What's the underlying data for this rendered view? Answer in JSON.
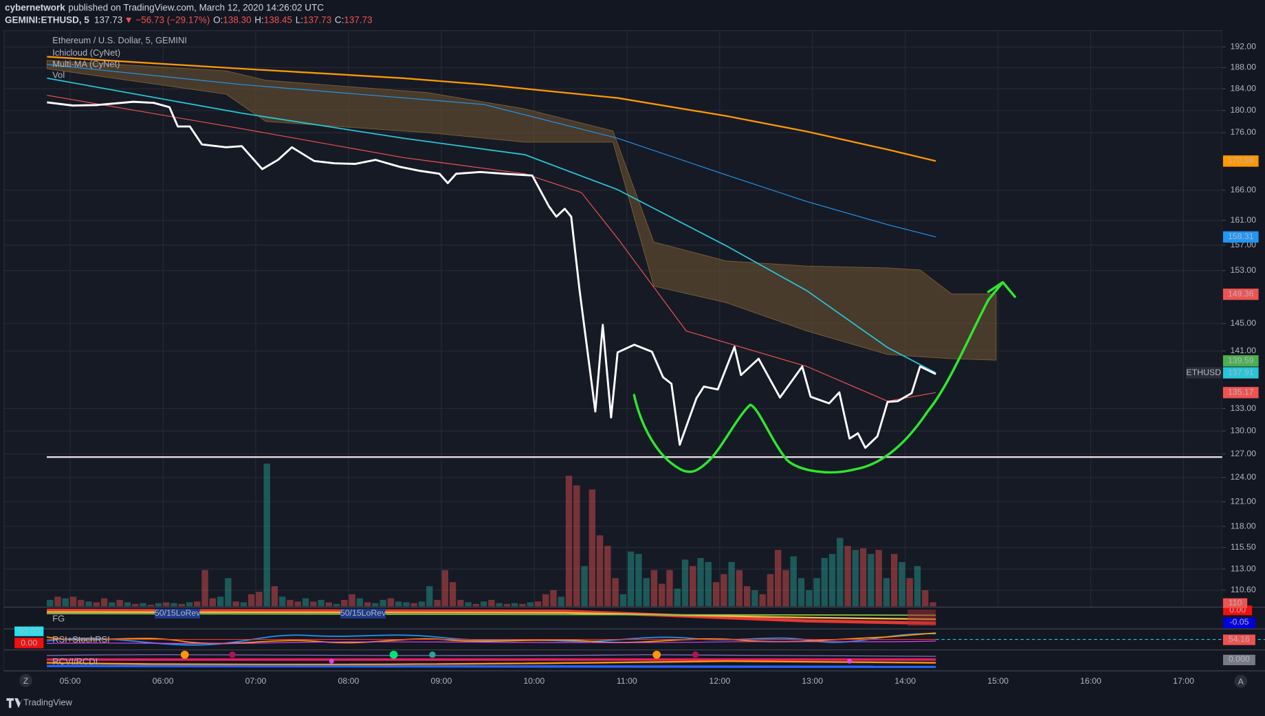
{
  "header": {
    "publisher": "cybernetwork",
    "published": "published on TradingView.com, March 12, 2020 14:26:02 UTC",
    "symbol": "GEMINI:ETHUSD, 5",
    "last": "137.73",
    "arrow": "▼",
    "change": "−56.73 (−29.17%)",
    "ohlc": [
      {
        "label": "O:",
        "value": "138.30"
      },
      {
        "label": "H:",
        "value": "138.45"
      },
      {
        "label": "L:",
        "value": "137.73"
      },
      {
        "label": "C:",
        "value": "137.73"
      }
    ]
  },
  "chart_data": {
    "type": "line",
    "title": "Ethereum / U.S. Dollar, 5, GEMINI",
    "indicator_names": [
      {
        "text": "Ichicloud (CyNet)",
        "color": "#e0a050"
      },
      {
        "text": "Multi-MA (CyNet)",
        "color": "#5aa8e8"
      },
      {
        "text": "Vol",
        "color": "#d1d4dc"
      }
    ],
    "log_scale": true,
    "grid": true,
    "xlim": [
      4.287,
      17.417
    ],
    "xticks": [
      {
        "value": 5,
        "label": "05:00"
      },
      {
        "value": 6,
        "label": "06:00"
      },
      {
        "value": 7,
        "label": "07:00"
      },
      {
        "value": 8,
        "label": "08:00"
      },
      {
        "value": 9,
        "label": "09:00"
      },
      {
        "value": 10,
        "label": "10:00"
      },
      {
        "value": 11,
        "label": "11:00"
      },
      {
        "value": 12,
        "label": "12:00"
      },
      {
        "value": 13,
        "label": "13:00"
      },
      {
        "value": 14,
        "label": "14:00"
      },
      {
        "value": 15,
        "label": "15:00"
      },
      {
        "value": 16,
        "label": "16:00"
      },
      {
        "value": 17,
        "label": "17:00"
      }
    ],
    "ylim": [
      108.8,
      195.2
    ],
    "yticks": [
      {
        "value": 192,
        "label": "192.00"
      },
      {
        "value": 188,
        "label": "188.00"
      },
      {
        "value": 184,
        "label": "184.00"
      },
      {
        "value": 180,
        "label": "180.00"
      },
      {
        "value": 176,
        "label": "176.00"
      },
      {
        "value": 166,
        "label": "166.00"
      },
      {
        "value": 161,
        "label": "161.00"
      },
      {
        "value": 157,
        "label": "157.00"
      },
      {
        "value": 153,
        "label": "153.00"
      },
      {
        "value": 145,
        "label": "145.00"
      },
      {
        "value": 141,
        "label": "141.00"
      },
      {
        "value": 133,
        "label": "133.00"
      },
      {
        "value": 130,
        "label": "130.00"
      },
      {
        "value": 127,
        "label": "127.00"
      },
      {
        "value": 124,
        "label": "124.00"
      },
      {
        "value": 121,
        "label": "121.00"
      },
      {
        "value": 118,
        "label": "118.00"
      },
      {
        "value": 115.5,
        "label": "115.50"
      },
      {
        "value": 113,
        "label": "113.00"
      },
      {
        "value": 110.6,
        "label": "110.60"
      }
    ],
    "cloud": {
      "color": "#6b5230",
      "x": [
        4.75,
        6.68,
        7.11,
        8.85,
        9.9,
        10.85,
        11.29,
        12.07,
        12.94,
        13.81,
        14.16,
        14.5,
        14.98
      ],
      "upper": [
        189.4,
        187.4,
        185.6,
        183.3,
        180.3,
        176.3,
        157.5,
        154.5,
        153.7,
        153.4,
        153.1,
        149.4,
        149.4
      ],
      "lower": [
        187.8,
        183.0,
        178.0,
        176.0,
        174.3,
        174.3,
        150.6,
        148.1,
        143.9,
        140.5,
        140.2,
        139.9,
        139.7
      ]
    },
    "series": [
      {
        "color": "#ff9800",
        "width": 2,
        "x": [
          4.75,
          6.85,
          8.59,
          9.46,
          10.9,
          12.07,
          12.94,
          13.81,
          14.33
        ],
        "values": [
          190.1,
          187.8,
          186.0,
          184.8,
          182.3,
          179.0,
          176.2,
          173.0,
          170.99
        ]
      },
      {
        "color": "#2196f3",
        "width": 1,
        "x": [
          4.75,
          6.85,
          9.46,
          10.9,
          12.07,
          12.94,
          13.81,
          14.33
        ],
        "values": [
          188.6,
          184.8,
          181.1,
          175.0,
          168.6,
          164.1,
          160.3,
          158.31
        ]
      },
      {
        "color": "#26c6da",
        "width": 1.5,
        "x": [
          4.75,
          6.85,
          8.59,
          9.9,
          10.9,
          12.07,
          12.94,
          13.81,
          14.33
        ],
        "values": [
          186.0,
          179.5,
          175.0,
          172.1,
          166.1,
          156.9,
          149.9,
          141.5,
          137.91
        ]
      },
      {
        "color": "#ef5350",
        "width": 1,
        "x": [
          4.75,
          6.85,
          8.59,
          9.9,
          10.51,
          10.9,
          11.64,
          12.94,
          13.81,
          14.33
        ],
        "values": [
          182.8,
          176.7,
          171.6,
          168.8,
          165.6,
          158.1,
          143.9,
          138.8,
          134.0,
          135.17
        ]
      },
      {
        "color": "#ffffff",
        "width": 2.5,
        "x": [
          4.75,
          5.03,
          5.29,
          5.68,
          5.9,
          6.07,
          6.16,
          6.29,
          6.42,
          6.68,
          6.85,
          7.07,
          7.24,
          7.39,
          7.63,
          7.85,
          8.07,
          8.29,
          8.55,
          8.77,
          8.98,
          9.07,
          9.16,
          9.42,
          9.68,
          9.98,
          10.16,
          10.24,
          10.33,
          10.4,
          10.49,
          10.66,
          10.74,
          10.83,
          10.9,
          11.08,
          11.27,
          11.39,
          11.48,
          11.57,
          11.75,
          11.83,
          11.98,
          12.16,
          12.23,
          12.42,
          12.65,
          12.89,
          12.98,
          13.18,
          13.29,
          13.4,
          13.49,
          13.57,
          13.7,
          13.81,
          13.92,
          14.07,
          14.16,
          14.33
        ],
        "values": [
          181.5,
          180.9,
          181.0,
          181.6,
          181.4,
          180.6,
          177.1,
          177.1,
          173.9,
          173.4,
          173.6,
          169.6,
          171.2,
          173.4,
          171.0,
          170.6,
          170.5,
          171.2,
          170.0,
          169.3,
          168.8,
          167.2,
          168.8,
          169.1,
          168.8,
          168.5,
          163.3,
          161.6,
          162.9,
          161.6,
          150.0,
          132.6,
          144.8,
          131.8,
          140.8,
          141.9,
          140.9,
          137.3,
          136.4,
          128.2,
          134.4,
          136.0,
          135.6,
          141.6,
          137.6,
          139.9,
          134.5,
          138.8,
          134.6,
          133.7,
          135.2,
          129.0,
          129.7,
          127.8,
          129.3,
          133.9,
          134.0,
          135.1,
          138.8,
          137.73
        ]
      }
    ],
    "support_level": 126.6,
    "support_color": "#eadbe2",
    "symbol_label": "ETHUSD",
    "last_values": [
      {
        "value": 170.99,
        "color": "#ff9800",
        "text_color": "#131722"
      },
      {
        "value": 158.31,
        "color": "#2196f3",
        "text_color": "#ffffff"
      },
      {
        "value": 149.36,
        "color": "#ef5350",
        "text_color": "#ffffff"
      },
      {
        "value": 139.59,
        "color": "#4caf50",
        "text_color": "#ffffff"
      },
      {
        "value": 137.91,
        "color": "#26c6da",
        "text_color": "#131722"
      },
      {
        "value": 135.17,
        "color": "#ef5350",
        "text_color": "#ffffff"
      }
    ],
    "volume": {
      "up_color": "#26a69a",
      "down_color": "#ef5350",
      "last_label": "110",
      "values": [
        8,
        12,
        10,
        12,
        8,
        6,
        5,
        10,
        5,
        8,
        5,
        3,
        4,
        2,
        4,
        5,
        4,
        3,
        5,
        6,
        45,
        10,
        12,
        35,
        6,
        5,
        15,
        18,
        177,
        25,
        12,
        8,
        6,
        10,
        6,
        8,
        5,
        3,
        8,
        15,
        10,
        5,
        4,
        8,
        10,
        6,
        5,
        4,
        6,
        25,
        8,
        45,
        30,
        8,
        5,
        3,
        6,
        8,
        4,
        3,
        4,
        3,
        5,
        6,
        15,
        20,
        12,
        162,
        150,
        50,
        145,
        88,
        75,
        35,
        15,
        68,
        65,
        35,
        45,
        28,
        45,
        22,
        58,
        50,
        60,
        55,
        30,
        40,
        55,
        45,
        25,
        20,
        15,
        40,
        70,
        45,
        62,
        35,
        20,
        35,
        60,
        65,
        85,
        75,
        70,
        72,
        65,
        70,
        35,
        65,
        55,
        35,
        50,
        20,
        5
      ],
      "up": [
        true,
        false,
        true,
        false,
        false,
        true,
        false,
        false,
        true,
        false,
        true,
        false,
        true,
        false,
        true,
        false,
        true,
        false,
        true,
        false,
        false,
        false,
        true,
        true,
        false,
        true,
        false,
        false,
        true,
        false,
        true,
        false,
        false,
        true,
        false,
        true,
        false,
        true,
        false,
        false,
        true,
        false,
        true,
        true,
        false,
        true,
        true,
        false,
        true,
        true,
        false,
        false,
        false,
        false,
        true,
        false,
        true,
        false,
        true,
        false,
        true,
        false,
        true,
        false,
        false,
        false,
        true,
        false,
        false,
        true,
        false,
        false,
        false,
        false,
        true,
        true,
        true,
        true,
        false,
        false,
        false,
        true,
        true,
        false,
        true,
        true,
        false,
        false,
        true,
        false,
        false,
        true,
        false,
        false,
        false,
        false,
        true,
        true,
        true,
        true,
        true,
        true,
        true,
        false,
        true,
        false,
        true,
        false,
        true,
        false,
        true,
        false,
        true,
        false,
        false
      ]
    }
  },
  "indicators": {
    "fg": {
      "name": "FG",
      "tags": [
        "50/15LoRev",
        "50/15LoRev"
      ],
      "right": [
        "0.00",
        "-0.05"
      ]
    },
    "rsi": {
      "name": "RSI+StochRSI",
      "left": [
        "50.00",
        "0.00"
      ],
      "right": "54.16"
    },
    "rcvi": {
      "name": "RCVI/RCDI",
      "right": "0.000"
    }
  },
  "footer": {
    "brand": "TradingView",
    "left_button": "Z",
    "right_button": "A"
  }
}
